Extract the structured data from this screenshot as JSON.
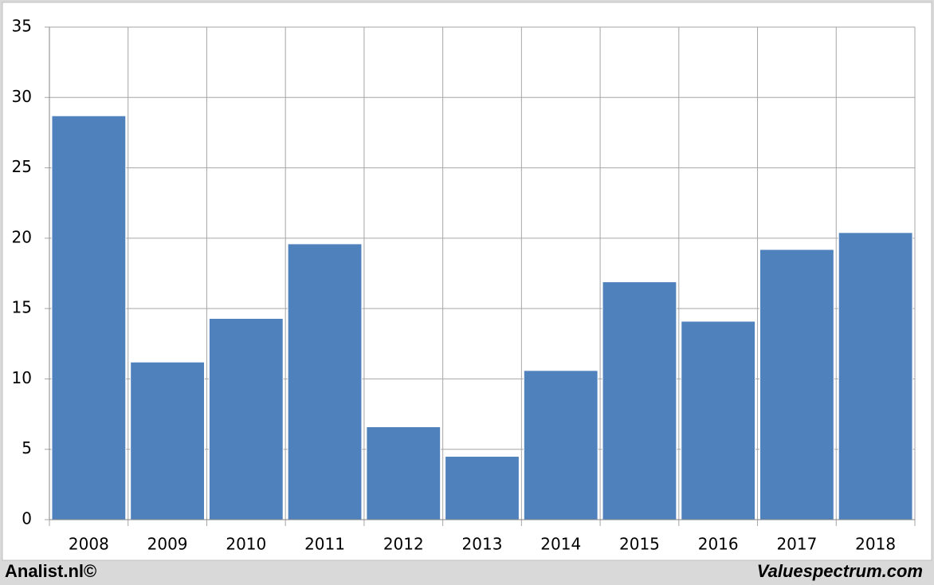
{
  "chart_data": {
    "type": "bar",
    "categories": [
      "2008",
      "2009",
      "2010",
      "2011",
      "2012",
      "2013",
      "2014",
      "2015",
      "2016",
      "2017",
      "2018"
    ],
    "values": [
      28.7,
      11.2,
      14.3,
      19.6,
      6.6,
      4.5,
      10.6,
      16.9,
      14.1,
      19.2,
      20.4
    ],
    "color": "#4f81bd",
    "ylim": [
      0,
      35
    ],
    "yticks": [
      0,
      5,
      10,
      15,
      20,
      25,
      30,
      35
    ],
    "grid": true,
    "footer_left": "Analist.nl©",
    "footer_right": "Valuespectrum.com"
  }
}
